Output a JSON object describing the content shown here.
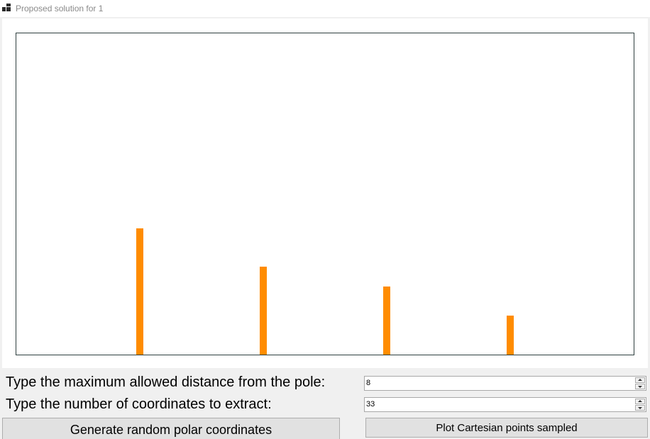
{
  "window": {
    "title": "Proposed solution for 1"
  },
  "controls": {
    "distance_label": "Type the maximum allowed distance from the pole:",
    "distance_value": "8",
    "count_label": "Type the number of coordinates to extract:",
    "count_value": "33",
    "generate_button": "Generate random polar coordinates",
    "plot_button": "Plot Cartesian points sampled"
  },
  "chart_data": {
    "type": "bar",
    "bar_color": "#ff8c00",
    "values": [
      178,
      124,
      96,
      55
    ],
    "ylim": [
      0,
      453
    ],
    "grid": false,
    "legend": "none"
  }
}
